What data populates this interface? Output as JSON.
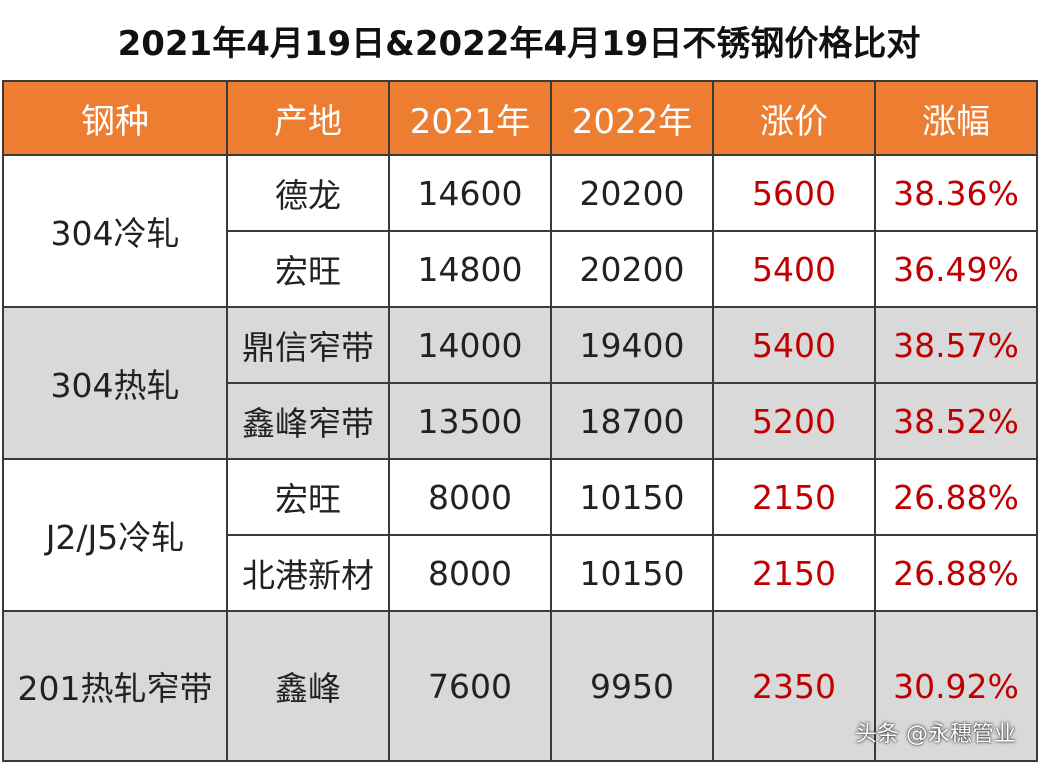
{
  "title": "2021年4月19日&2022年4月19日不锈钢价格比对",
  "headers": [
    "钢种",
    "产地",
    "2021年",
    "2022年",
    "涨价",
    "涨幅"
  ],
  "groups": [
    {
      "name": "304冷轧",
      "rows": [
        [
          "德龙",
          "14600",
          "20200",
          "5600",
          "38.36%"
        ],
        [
          "宏旺",
          "14800",
          "20200",
          "5400",
          "36.49%"
        ]
      ]
    },
    {
      "name": "304热轧",
      "rows": [
        [
          "鼎信窄带",
          "14000",
          "19400",
          "5400",
          "38.57%"
        ],
        [
          "鑫峰窄带",
          "13500",
          "18700",
          "5200",
          "38.52%"
        ]
      ]
    },
    {
      "name": "J2/J5冷轧",
      "rows": [
        [
          "宏旺",
          "8000",
          "10150",
          "2150",
          "26.88%"
        ],
        [
          "北港新材",
          "8000",
          "10150",
          "2150",
          "26.88%"
        ]
      ]
    },
    {
      "name": "201热轧窄带",
      "rows": [
        [
          "鑫峰",
          "7600",
          "9950",
          "2350",
          "30.92%"
        ]
      ]
    }
  ],
  "watermark": "头条 @永穗管业",
  "colors": {
    "header_bg": "#ed7d31",
    "alt_row_bg": "#d9d9d9",
    "increase_text": "#c00000"
  }
}
